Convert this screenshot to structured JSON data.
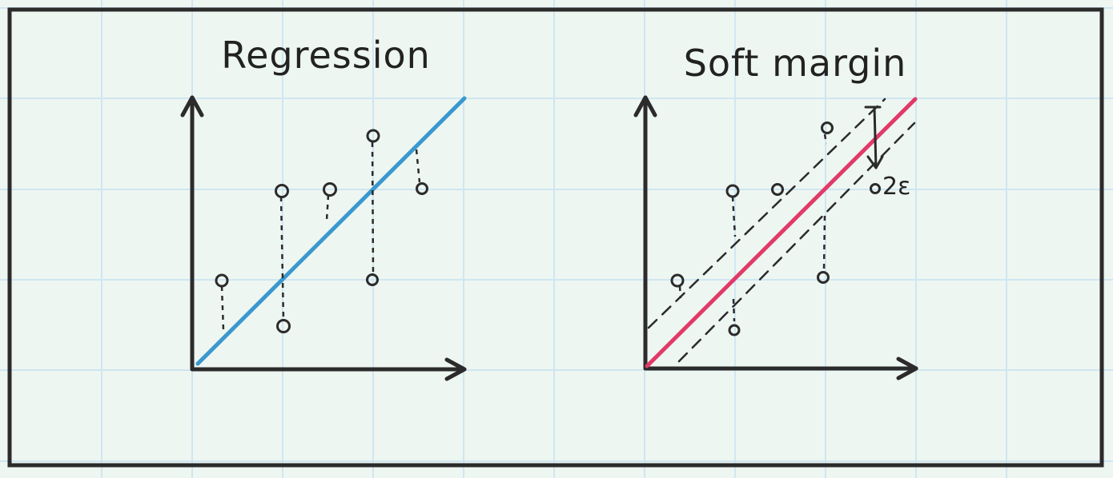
{
  "panels": {
    "left": {
      "title": "Regression",
      "line_color": "#3a98cf"
    },
    "right": {
      "title": "Soft margin",
      "line_color": "#e13a68",
      "margin_label": "2ε"
    }
  },
  "colors": {
    "background": "#eef6f1",
    "grid": "#cfe6f2",
    "ink": "#2b2b2b"
  }
}
